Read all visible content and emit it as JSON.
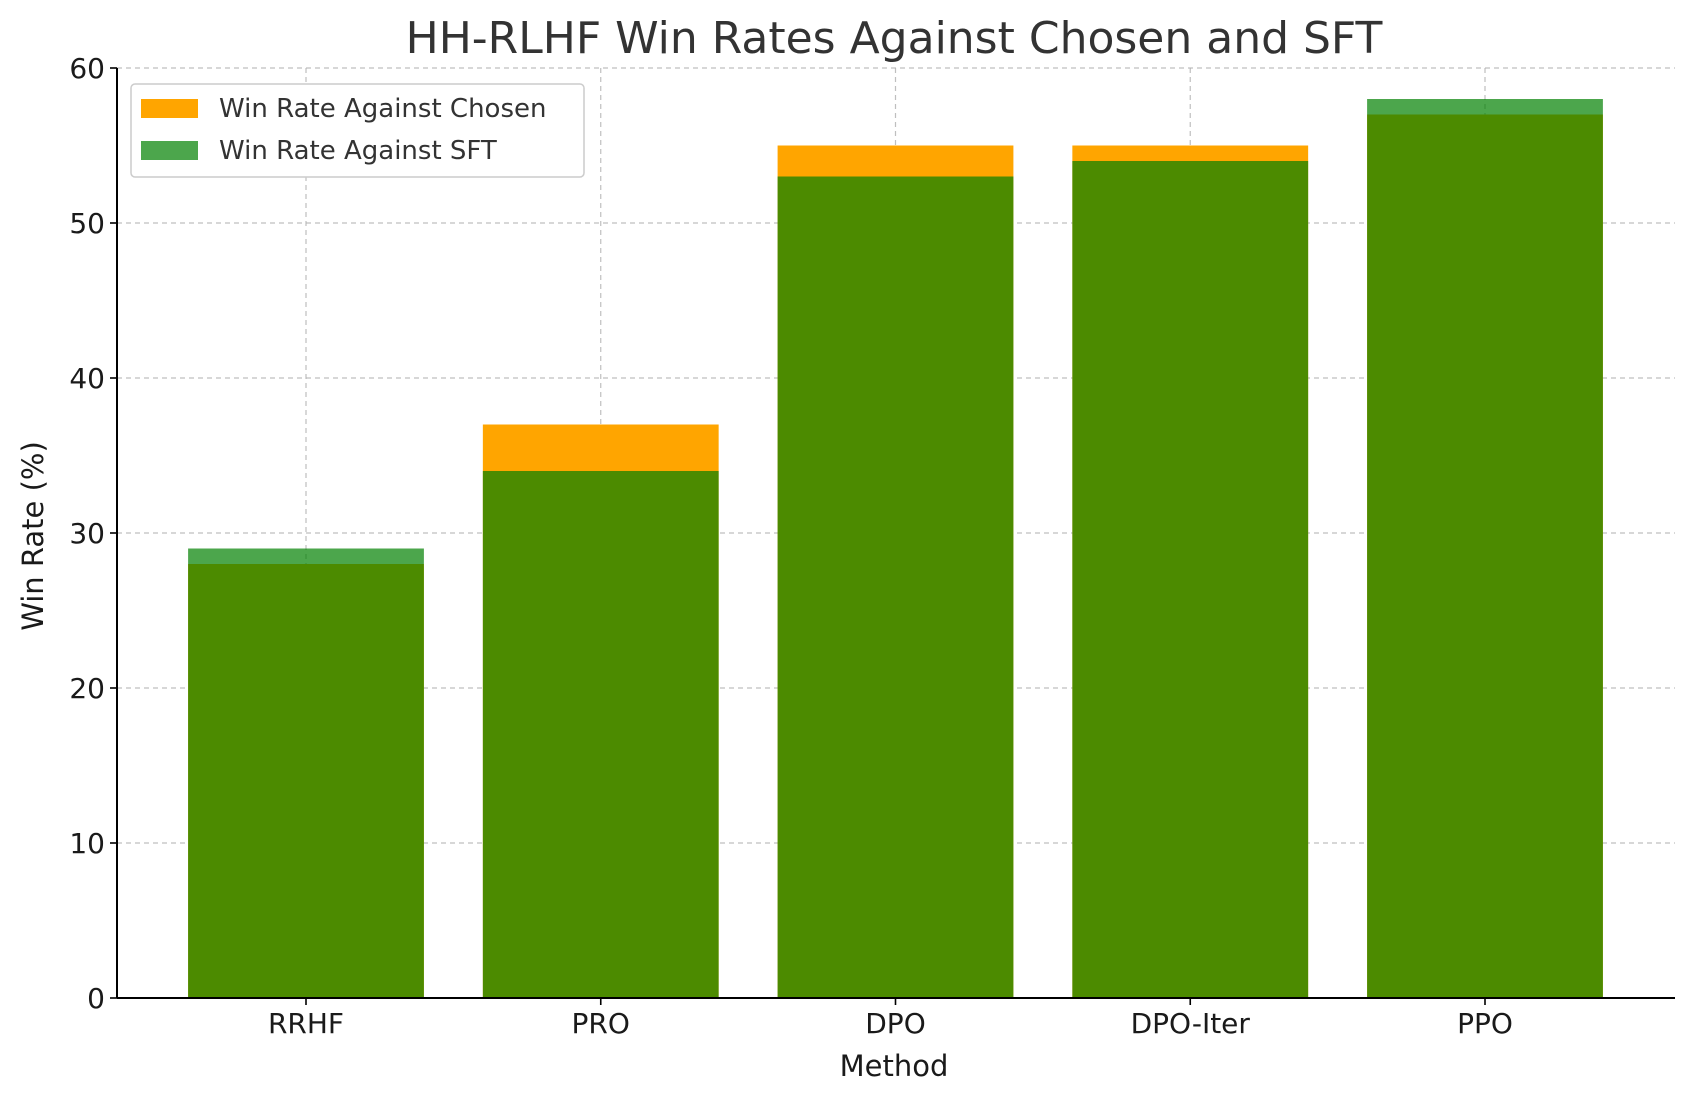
{
  "chart_data": {
    "type": "bar",
    "title": "HH-RLHF Win Rates Against Chosen and SFT",
    "xlabel": "Method",
    "ylabel": "Win Rate (%)",
    "ylim": [
      0,
      60
    ],
    "yticks": [
      0,
      10,
      20,
      30,
      40,
      50,
      60
    ],
    "grid": true,
    "legend_position": "top-left",
    "categories": [
      "RRHF",
      "PRO",
      "DPO",
      "DPO-Iter",
      "PPO"
    ],
    "series": [
      {
        "name": "Win Rate Against Chosen",
        "color": "#ffa500",
        "opacity": 1.0,
        "values": [
          28,
          37,
          55,
          55,
          57
        ]
      },
      {
        "name": "Win Rate Against SFT",
        "color": "#008000",
        "opacity": 0.7,
        "values": [
          29,
          34,
          53,
          54,
          58
        ]
      }
    ]
  }
}
